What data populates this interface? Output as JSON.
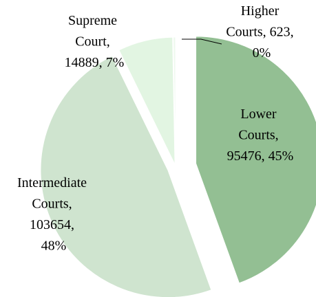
{
  "chart_data": {
    "type": "pie",
    "categories": [
      "Lower Courts",
      "Intermediate Courts",
      "Supreme Court",
      "Higher Courts"
    ],
    "values": [
      95476,
      103654,
      14889,
      623
    ],
    "percent_labels": [
      "45%",
      "48%",
      "7%",
      "0%"
    ],
    "colors": [
      "#93bf93",
      "#cfe4cf",
      "#e2f5e2",
      "#eef9ee"
    ],
    "start_angle": 0,
    "direction": "clockwise",
    "exploded": true
  }
}
